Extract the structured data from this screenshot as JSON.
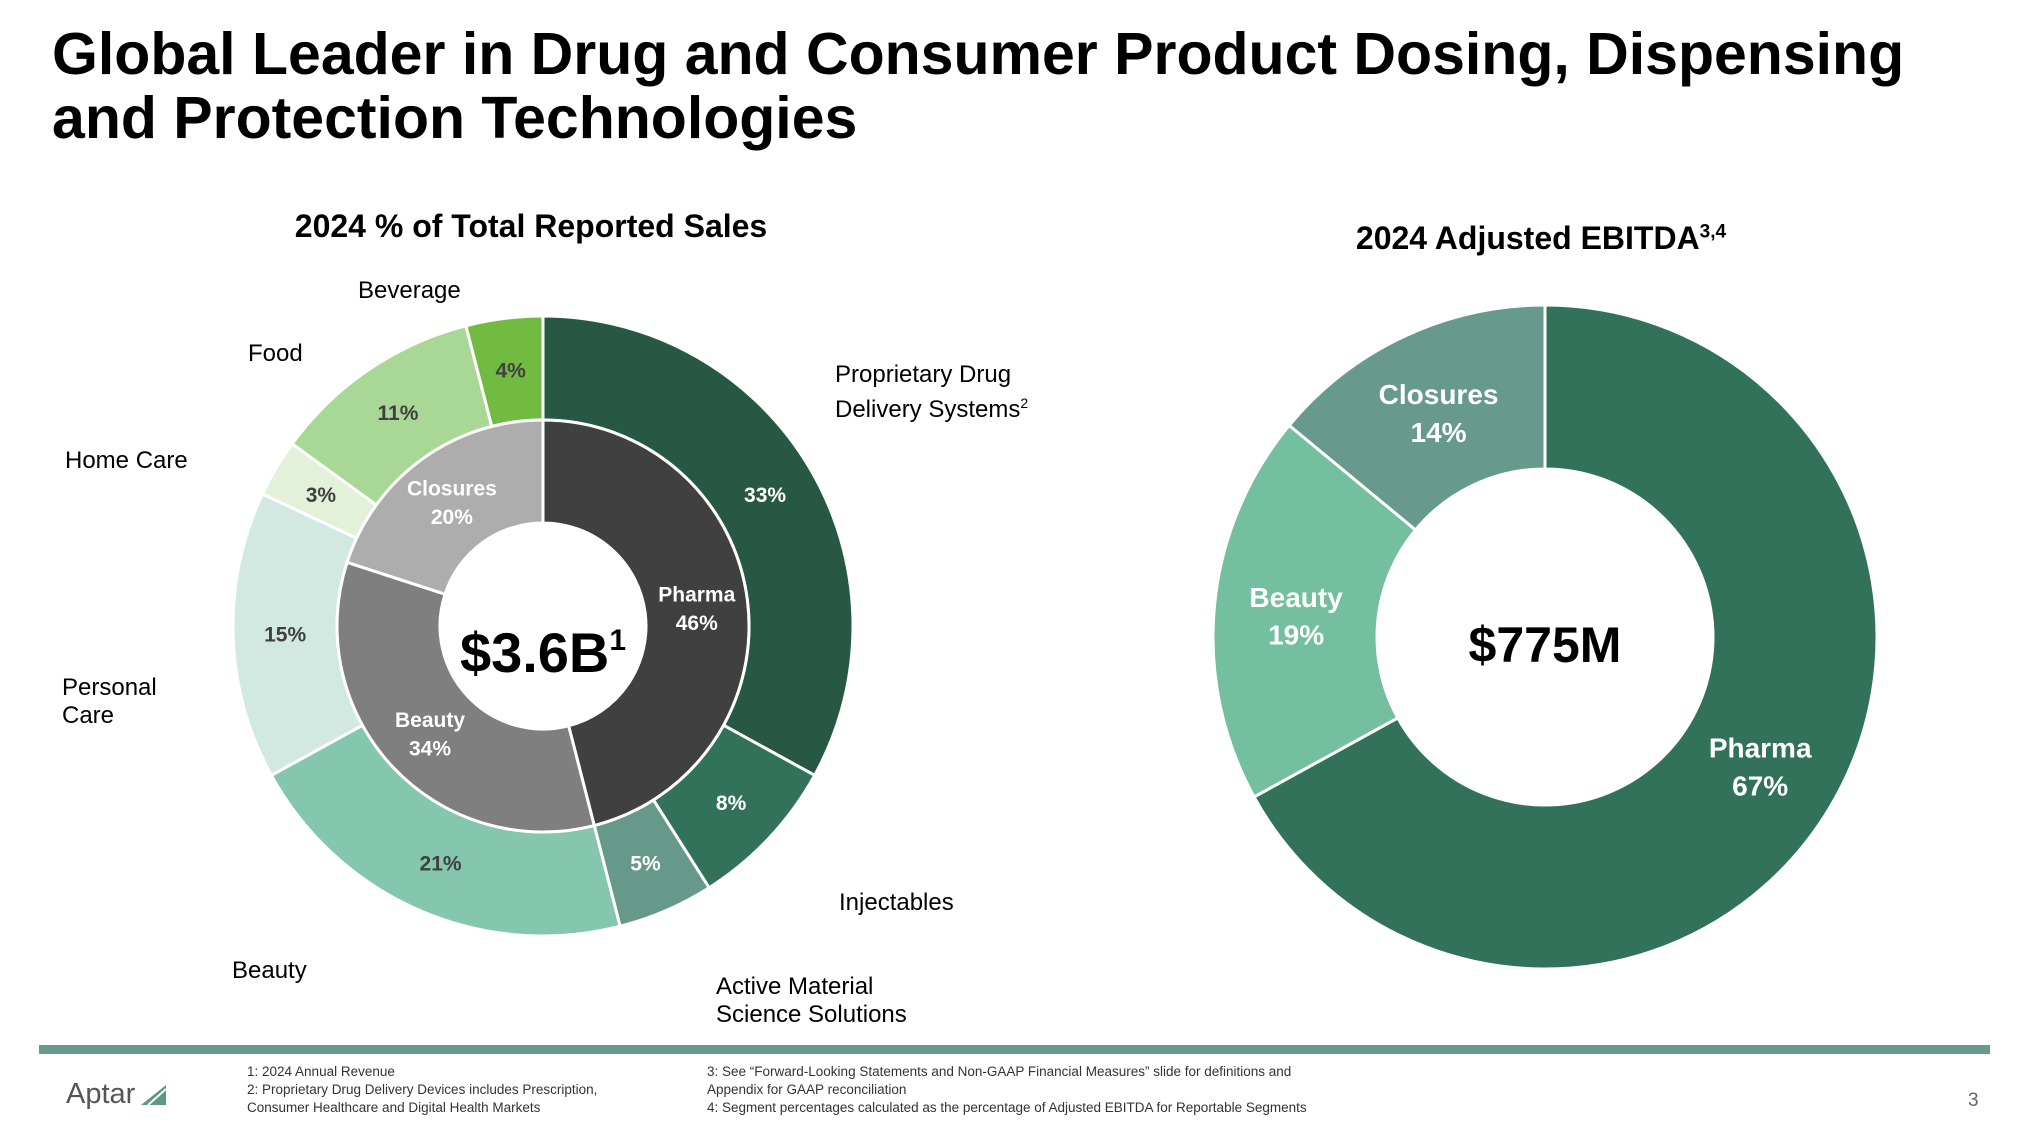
{
  "header": {
    "title": "Global Leader in Drug and Consumer Product Dosing, Dispensing and Protection Technologies"
  },
  "sales_chart": {
    "title": "2024 % of Total Reported Sales",
    "center_value": "$3.6B",
    "center_sup": "1",
    "categories": {
      "beverage": "Beverage",
      "food": "Food",
      "home_care": "Home Care",
      "personal_care_1": "Personal",
      "personal_care_2": "Care",
      "beauty": "Beauty",
      "pdds_1": "Proprietary Drug",
      "pdds_2": "Delivery Systems",
      "pdds_sup": "2",
      "injectables": "Injectables",
      "amss_1": "Active Material",
      "amss_2": "Science Solutions"
    }
  },
  "ebitda_chart": {
    "title": "2024 Adjusted EBITDA",
    "title_sup": "3,4",
    "center_value": "$775M"
  },
  "chart_data": [
    {
      "type": "pie",
      "name": "sales-outer",
      "title": "2024 % of Total Reported Sales",
      "slices": [
        {
          "label": "Proprietary Drug Delivery Systems",
          "value": 33,
          "pct_label": "33%",
          "color": "#265844",
          "text_color": "#ffffff"
        },
        {
          "label": "Injectables",
          "value": 8,
          "pct_label": "8%",
          "color": "#33725a",
          "text_color": "#ffffff"
        },
        {
          "label": "Active Material Science Solutions",
          "value": 5,
          "pct_label": "5%",
          "color": "#67998a",
          "text_color": "#ffffff"
        },
        {
          "label": "Beauty",
          "value": 21,
          "pct_label": "21%",
          "color": "#84c6ae",
          "text_color": "#404040"
        },
        {
          "label": "Personal Care",
          "value": 15,
          "pct_label": "15%",
          "color": "#d1e9e0",
          "text_color": "#404040"
        },
        {
          "label": "Home Care",
          "value": 3,
          "pct_label": "3%",
          "color": "#e3f1da",
          "text_color": "#404040"
        },
        {
          "label": "Food",
          "value": 11,
          "pct_label": "11%",
          "color": "#a9d795",
          "text_color": "#404040"
        },
        {
          "label": "Beverage",
          "value": 4,
          "pct_label": "4%",
          "color": "#72bb43",
          "text_color": "#404040"
        }
      ]
    },
    {
      "type": "pie",
      "name": "sales-inner",
      "slices": [
        {
          "label": "Pharma",
          "value": 46,
          "pct_label": "46%",
          "color": "#404040",
          "text_color": "#ffffff"
        },
        {
          "label": "Beauty",
          "value": 34,
          "pct_label": "34%",
          "color": "#7f7f7f",
          "text_color": "#ffffff"
        },
        {
          "label": "Closures",
          "value": 20,
          "pct_label": "20%",
          "color": "#adadad",
          "text_color": "#ffffff"
        }
      ]
    },
    {
      "type": "pie",
      "name": "ebitda",
      "title": "2024 Adjusted EBITDA",
      "slices": [
        {
          "label": "Pharma",
          "value": 67,
          "pct_label": "67%",
          "color": "#33725a",
          "text_color": "#ffffff"
        },
        {
          "label": "Beauty",
          "value": 19,
          "pct_label": "19%",
          "color": "#73bf9f",
          "text_color": "#ffffff"
        },
        {
          "label": "Closures",
          "value": 14,
          "pct_label": "14%",
          "color": "#679a8c",
          "text_color": "#ffffff"
        }
      ]
    }
  ],
  "footer": {
    "logo": "Aptar",
    "notes_left": [
      "1: 2024 Annual Revenue",
      "2: Proprietary Drug Delivery Devices includes Prescription,",
      "Consumer Healthcare and Digital Health Markets"
    ],
    "notes_right": [
      "3: See “Forward-Looking Statements and Non-GAAP Financial Measures” slide for definitions and",
      "Appendix for GAAP reconciliation",
      "4: Segment percentages calculated as the percentage of Adjusted EBITDA for Reportable Segments"
    ],
    "page_number": "3"
  }
}
